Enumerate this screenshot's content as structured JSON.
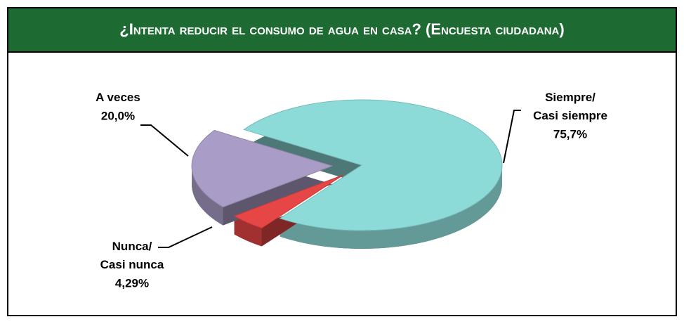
{
  "chart_data": {
    "type": "pie",
    "title": "¿Intenta reducir el consumo de agua en casa? (Encuesta ciudadana)",
    "categories": [
      "Siempre/ Casi siempre",
      "Nunca/ Casi nunca",
      "A veces"
    ],
    "values": [
      75.7,
      4.29,
      20.0
    ],
    "value_labels": [
      "75,7%",
      "4,29%",
      "20,0%"
    ],
    "colors": [
      "#8ddbd8",
      "#e64646",
      "#a99cc6"
    ]
  }
}
